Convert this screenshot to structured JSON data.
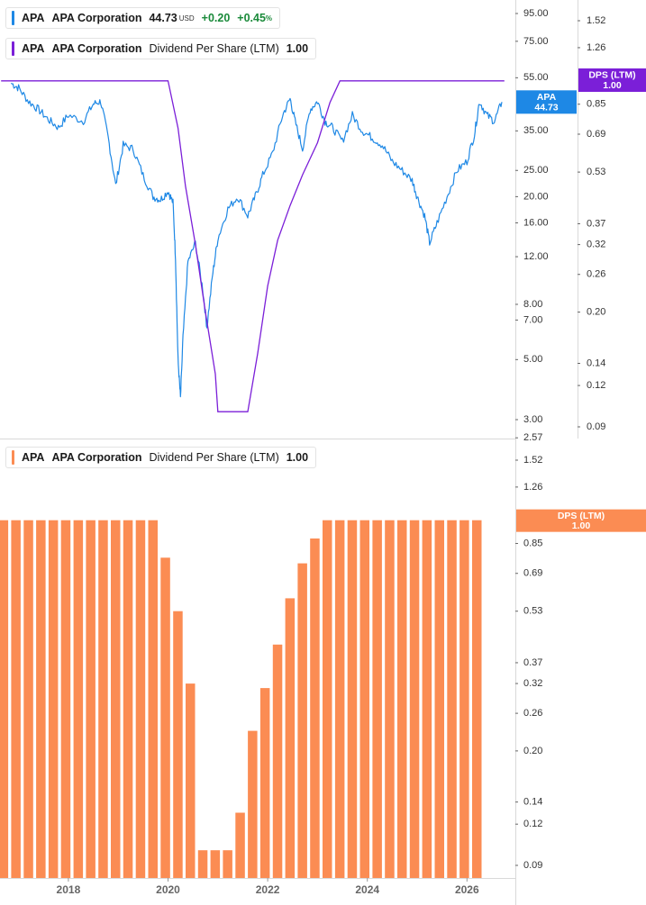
{
  "legend_price": {
    "ticker": "APA",
    "company": "APA Corporation",
    "price": "44.73",
    "unit": "USD",
    "change": "+0.20",
    "change_pct": "+0.45",
    "pct_sign": "%",
    "color": "#1e88e5"
  },
  "legend_dps_top": {
    "ticker": "APA",
    "company": "APA Corporation",
    "metric": "Dividend Per Share (LTM)",
    "value": "1.00",
    "color": "#7b1fd8"
  },
  "legend_dps_bottom": {
    "ticker": "APA",
    "company": "APA Corporation",
    "metric": "Dividend Per Share (LTM)",
    "value": "1.00",
    "color": "#fb8c53"
  },
  "badges": {
    "price_badge": {
      "title": "APA",
      "value": "44.73",
      "color": "#1e88e5"
    },
    "dps_badge_top": {
      "title": "DPS (LTM)",
      "value": "1.00",
      "color": "#7b1fd8"
    },
    "dps_badge_bottom": {
      "title": "DPS (LTM)",
      "value": "1.00",
      "color": "#fb8c53"
    }
  },
  "chart_data": [
    {
      "type": "line",
      "scale": "log",
      "price_axis_ticks": [
        "95.00",
        "75.00",
        "55.00",
        "35.00",
        "25.00",
        "20.00",
        "16.00",
        "12.00",
        "8.00",
        "7.00",
        "5.00",
        "3.00",
        "2.57"
      ],
      "dps_axis_ticks": [
        "1.52",
        "1.26",
        "0.85",
        "0.69",
        "0.53",
        "0.37",
        "0.32",
        "0.26",
        "0.20",
        "0.14",
        "0.12",
        "0.09"
      ],
      "series": [
        {
          "name": "APA",
          "color": "#1e88e5",
          "points": [
            [
              2016.85,
              52.5
            ],
            [
              2017.0,
              50.5
            ],
            [
              2017.2,
              45
            ],
            [
              2017.4,
              42
            ],
            [
              2017.6,
              38.5
            ],
            [
              2017.8,
              36
            ],
            [
              2018.0,
              40
            ],
            [
              2018.3,
              38
            ],
            [
              2018.5,
              44
            ],
            [
              2018.65,
              45
            ],
            [
              2018.8,
              33
            ],
            [
              2018.95,
              22
            ],
            [
              2019.1,
              31
            ],
            [
              2019.3,
              30
            ],
            [
              2019.5,
              24
            ],
            [
              2019.7,
              20
            ],
            [
              2019.85,
              19.5
            ],
            [
              2020.0,
              21
            ],
            [
              2020.1,
              19
            ],
            [
              2020.15,
              12
            ],
            [
              2020.2,
              5
            ],
            [
              2020.25,
              3.6
            ],
            [
              2020.3,
              6
            ],
            [
              2020.4,
              11.5
            ],
            [
              2020.55,
              13.5
            ],
            [
              2020.7,
              9
            ],
            [
              2020.78,
              6.6
            ],
            [
              2020.9,
              10.5
            ],
            [
              2021.0,
              14
            ],
            [
              2021.2,
              18
            ],
            [
              2021.4,
              20
            ],
            [
              2021.6,
              17
            ],
            [
              2021.75,
              20
            ],
            [
              2021.9,
              24
            ],
            [
              2022.1,
              29
            ],
            [
              2022.3,
              40
            ],
            [
              2022.45,
              46
            ],
            [
              2022.55,
              38
            ],
            [
              2022.7,
              30
            ],
            [
              2022.85,
              42
            ],
            [
              2023.0,
              45
            ],
            [
              2023.15,
              38
            ],
            [
              2023.3,
              36
            ],
            [
              2023.5,
              32
            ],
            [
              2023.7,
              40
            ],
            [
              2023.9,
              35
            ],
            [
              2024.1,
              33
            ],
            [
              2024.3,
              31
            ],
            [
              2024.5,
              27
            ],
            [
              2024.7,
              25
            ],
            [
              2024.9,
              23
            ],
            [
              2025.0,
              20
            ],
            [
              2025.15,
              17
            ],
            [
              2025.25,
              13.5
            ],
            [
              2025.4,
              16
            ],
            [
              2025.6,
              20
            ],
            [
              2025.8,
              25
            ],
            [
              2026.0,
              27
            ],
            [
              2026.15,
              34
            ],
            [
              2026.25,
              45
            ],
            [
              2026.4,
              40
            ],
            [
              2026.55,
              38
            ],
            [
              2026.7,
              44.73
            ]
          ]
        },
        {
          "name": "DPS (LTM)",
          "color": "#7b1fd8",
          "points": [
            [
              2016.65,
              1.0
            ],
            [
              2020.0,
              1.0
            ],
            [
              2020.2,
              0.72
            ],
            [
              2020.35,
              0.48
            ],
            [
              2020.55,
              0.32
            ],
            [
              2020.75,
              0.2
            ],
            [
              2020.95,
              0.13
            ],
            [
              2021.0,
              0.1
            ],
            [
              2021.6,
              0.1
            ],
            [
              2021.8,
              0.15
            ],
            [
              2022.0,
              0.24
            ],
            [
              2022.2,
              0.33
            ],
            [
              2022.45,
              0.42
            ],
            [
              2022.7,
              0.52
            ],
            [
              2023.0,
              0.65
            ],
            [
              2023.25,
              0.86
            ],
            [
              2023.45,
              1.0
            ],
            [
              2026.75,
              1.0
            ]
          ]
        }
      ]
    },
    {
      "type": "bar",
      "scale": "log",
      "axis_ticks": [
        "1.52",
        "1.26",
        "0.85",
        "0.69",
        "0.53",
        "0.37",
        "0.32",
        "0.26",
        "0.20",
        "0.14",
        "0.12",
        "0.09"
      ],
      "x_tick_labels": [
        "2018",
        "2020",
        "2022",
        "2024",
        "2026"
      ],
      "series": [
        {
          "name": "Dividend Per Share (LTM)",
          "color": "#fb8c53",
          "x": [
            2016.75,
            2017.0,
            2017.25,
            2017.5,
            2017.75,
            2018.0,
            2018.25,
            2018.5,
            2018.75,
            2019.0,
            2019.25,
            2019.5,
            2019.75,
            2020.0,
            2020.25,
            2020.5,
            2020.75,
            2021.0,
            2021.25,
            2021.5,
            2021.75,
            2022.0,
            2022.25,
            2022.5,
            2022.75,
            2023.0,
            2023.25,
            2023.5,
            2023.75,
            2024.0,
            2024.25,
            2024.5,
            2024.75,
            2025.0,
            2025.25,
            2025.5,
            2025.75,
            2026.0,
            2026.25,
            2026.5
          ],
          "values": [
            1.0,
            1.0,
            1.0,
            1.0,
            1.0,
            1.0,
            1.0,
            1.0,
            1.0,
            1.0,
            1.0,
            1.0,
            1.0,
            1.0,
            0.77,
            0.53,
            0.32,
            0.1,
            0.1,
            0.1,
            0.13,
            0.23,
            0.31,
            0.42,
            0.58,
            0.74,
            0.88,
            1.0,
            1.0,
            1.0,
            1.0,
            1.0,
            1.0,
            1.0,
            1.0,
            1.0,
            1.0,
            1.0,
            1.0,
            1.0
          ]
        }
      ]
    }
  ]
}
